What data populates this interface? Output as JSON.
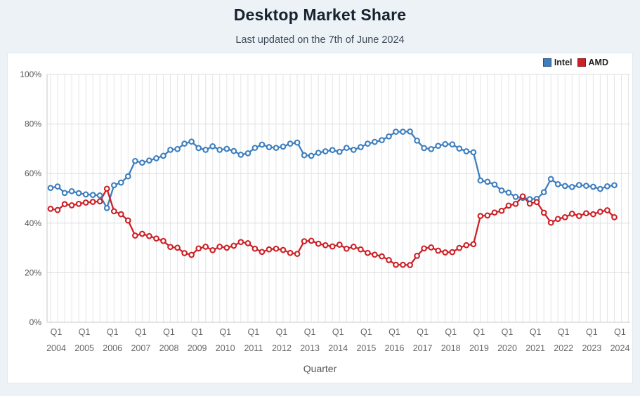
{
  "page": {
    "title": "Desktop Market Share",
    "subtitle": "Last updated on the 7th of June 2024",
    "xlabel": "Quarter"
  },
  "legend": [
    {
      "label": "Intel",
      "color": "#3d7ebe"
    },
    {
      "label": "AMD",
      "color": "#cc2127"
    }
  ],
  "colors": {
    "page_background": "#edf2f7",
    "panel_background": "#ffffff",
    "grid_vertical": "#e4e5e7",
    "grid_horizontal": "#dcdde0",
    "axis": "#c6cacf",
    "tick_text": "#666666",
    "title_text": "#16222e"
  },
  "chart_data": {
    "type": "line",
    "title": "Desktop Market Share",
    "subtitle": "Last updated on the 7th of June 2024",
    "xlabel": "Quarter",
    "ylabel": "",
    "ylim": [
      0,
      100
    ],
    "grid": "vertical per quarter, horizontal every 20%",
    "legend_position": "top-right",
    "marker": "open-circle",
    "xtick_prefix": "Q1",
    "years": [
      2004,
      2005,
      2006,
      2007,
      2008,
      2009,
      2010,
      2011,
      2012,
      2013,
      2014,
      2015,
      2016,
      2017,
      2018,
      2019,
      2020,
      2021,
      2022,
      2023,
      2024
    ],
    "ytick_labels": [
      "0%",
      "20%",
      "40%",
      "60%",
      "80%",
      "100%"
    ],
    "x_unit": "quarter, Q1 2004 through Q1 2024 (81 points per series)",
    "series": [
      {
        "name": "Intel",
        "color": "#3d7ebe",
        "values": [
          54.2,
          54.8,
          52.2,
          52.9,
          52.1,
          51.6,
          51.4,
          51.2,
          46.1,
          55.3,
          56.4,
          58.9,
          65.1,
          64.4,
          65.3,
          66.2,
          67.2,
          69.6,
          69.9,
          72.1,
          72.9,
          70.3,
          69.6,
          71.0,
          69.6,
          70.0,
          69.1,
          67.6,
          68.2,
          70.4,
          71.7,
          70.7,
          70.4,
          70.9,
          72.1,
          72.5,
          67.4,
          67.2,
          68.4,
          69.0,
          69.5,
          68.8,
          70.4,
          69.6,
          70.7,
          72.1,
          72.8,
          73.5,
          75.0,
          76.9,
          76.9,
          77.0,
          73.3,
          70.3,
          69.9,
          71.2,
          71.9,
          71.8,
          70.1,
          69.0,
          68.6,
          57.2,
          56.7,
          55.6,
          53.2,
          52.3,
          50.6,
          50.2,
          49.7,
          49.8,
          52.5,
          57.8,
          55.7,
          55.0,
          54.6,
          55.4,
          55.1,
          54.7,
          53.8,
          54.9,
          55.3
        ]
      },
      {
        "name": "AMD",
        "color": "#cc2127",
        "values": [
          45.8,
          45.3,
          47.7,
          47.2,
          47.8,
          48.3,
          48.6,
          48.8,
          53.9,
          44.8,
          43.6,
          41.1,
          35.0,
          35.7,
          34.8,
          33.8,
          32.8,
          30.4,
          30.1,
          27.9,
          27.2,
          29.8,
          30.5,
          29.1,
          30.5,
          30.1,
          30.9,
          32.4,
          31.9,
          29.7,
          28.4,
          29.4,
          29.7,
          29.2,
          28.0,
          27.6,
          32.7,
          32.9,
          31.7,
          31.1,
          30.6,
          31.3,
          29.7,
          30.5,
          29.4,
          28.0,
          27.3,
          26.6,
          25.1,
          23.2,
          23.2,
          23.1,
          26.8,
          29.8,
          30.2,
          28.9,
          28.2,
          28.3,
          30.0,
          31.1,
          31.5,
          42.9,
          43.1,
          44.3,
          45.0,
          47.1,
          47.8,
          50.8,
          47.9,
          48.5,
          44.2,
          40.2,
          41.7,
          42.4,
          43.8,
          42.9,
          44.0,
          43.6,
          44.6,
          45.2,
          42.4
        ]
      }
    ]
  }
}
